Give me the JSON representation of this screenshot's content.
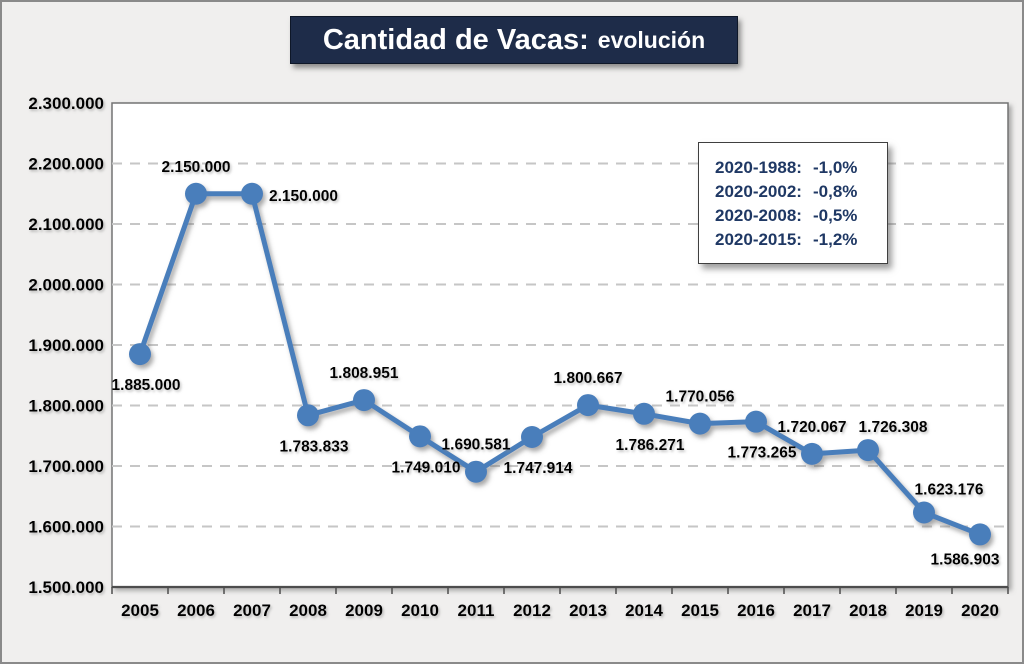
{
  "title": {
    "main": "Cantidad de Vacas:",
    "sub": "evolución"
  },
  "colors": {
    "background": "#f0efee",
    "title_bg": "#1e2c49",
    "title_text": "#ffffff",
    "line": "#4a7ebb",
    "marker": "#4a7ebb",
    "grid": "#c6c6c6",
    "plot_border": "#737373",
    "axis": "#4d4d4d",
    "label_text": "#000000",
    "legend_text": "#1f3864"
  },
  "legend": {
    "rows": [
      {
        "label": "2020-1988:",
        "value": "-1,0%"
      },
      {
        "label": "2020-2002:",
        "value": "-0,8%"
      },
      {
        "label": "2020-2008:",
        "value": "-0,5%"
      },
      {
        "label": "2020-2015:",
        "value": "-1,2%"
      }
    ]
  },
  "chart_data": {
    "type": "line",
    "title": "Cantidad de Vacas: evolución",
    "categories": [
      "2005",
      "2006",
      "2007",
      "2008",
      "2009",
      "2010",
      "2011",
      "2012",
      "2013",
      "2014",
      "2015",
      "2016",
      "2017",
      "2018",
      "2019",
      "2020"
    ],
    "values": [
      1885000,
      2150000,
      2150000,
      1783833,
      1808951,
      1749010,
      1690581,
      1747914,
      1800667,
      1786271,
      1770056,
      1773265,
      1720067,
      1726308,
      1623176,
      1586903
    ],
    "point_labels": [
      "1.885.000",
      "2.150.000",
      "2.150.000",
      "1.783.833",
      "1.808.951",
      "1.749.010",
      "1.690.581",
      "1.747.914",
      "1.800.667",
      "1.786.271",
      "1.770.056",
      "1.773.265",
      "1.720.067",
      "1.726.308",
      "1.623.176",
      "1.586.903"
    ],
    "label_placement": [
      "below",
      "above",
      "right",
      "below",
      "above",
      "below",
      "above",
      "below",
      "above",
      "below",
      "above",
      "below",
      "above",
      "above-right",
      "above-right",
      "below-left"
    ],
    "xlabel": "",
    "ylabel": "",
    "ylim": [
      1500000,
      2300000
    ],
    "ytick_step": 100000,
    "ytick_labels": [
      "2.300.000",
      "2.200.000",
      "2.100.000",
      "2.000.000",
      "1.900.000",
      "1.800.000",
      "1.700.000",
      "1.600.000",
      "1.500.000"
    ],
    "grid": "horizontal-dashed",
    "legend_position": "top-right-inside"
  }
}
